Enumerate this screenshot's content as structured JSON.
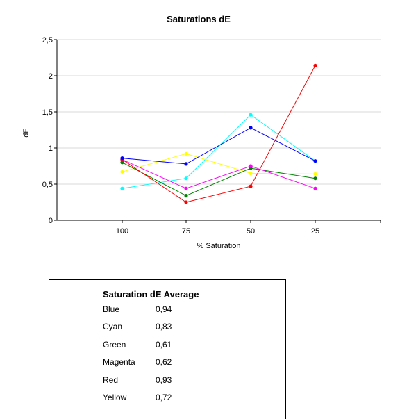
{
  "chart_data": {
    "type": "line",
    "title": "Saturations dE",
    "xlabel": "% Saturation",
    "ylabel": "dE",
    "categories": [
      "100",
      "75",
      "50",
      "25"
    ],
    "ylim": [
      0,
      2.5
    ],
    "yticks": [
      "0",
      "0,5",
      "1",
      "1,5",
      "2",
      "2,5"
    ],
    "grid": true,
    "series": [
      {
        "color": "#00ffff",
        "values": [
          0.44,
          0.58,
          1.46,
          0.82
        ]
      },
      {
        "color": "#ffff00",
        "values": [
          0.67,
          0.92,
          0.65,
          0.64
        ]
      },
      {
        "color": "#008000",
        "values": [
          0.8,
          0.34,
          0.72,
          0.58
        ]
      },
      {
        "color": "#ff00ff",
        "values": [
          0.84,
          0.44,
          0.75,
          0.44
        ]
      },
      {
        "color": "#ff0000",
        "values": [
          0.84,
          0.25,
          0.47,
          2.14
        ]
      },
      {
        "color": "#0000ff",
        "values": [
          0.86,
          0.78,
          1.28,
          0.82
        ]
      }
    ]
  },
  "average_table": {
    "title": "Saturation dE Average",
    "rows": [
      {
        "name": "Blue",
        "value": "0,94"
      },
      {
        "name": "Cyan",
        "value": "0,83"
      },
      {
        "name": "Green",
        "value": "0,61"
      },
      {
        "name": "Magenta",
        "value": "0,62"
      },
      {
        "name": "Red",
        "value": "0,93"
      },
      {
        "name": "Yellow",
        "value": "0,72"
      }
    ]
  }
}
